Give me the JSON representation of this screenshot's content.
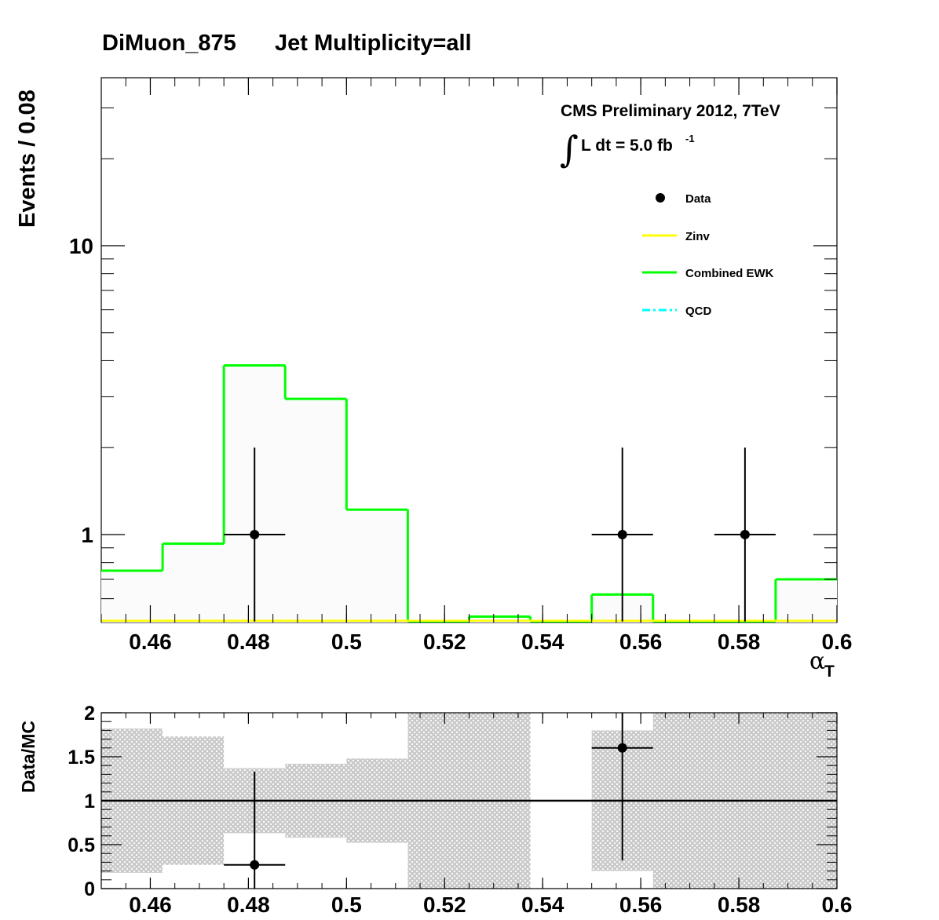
{
  "title": {
    "dataset": "DiMuon_875",
    "selection": "Jet Multiplicity=all"
  },
  "cms_label": {
    "line1": "CMS Preliminary 2012, 7TeV",
    "integral": "∫",
    "lumi_text": "L dt = 5.0 fb",
    "lumi_sup": "-1"
  },
  "colors": {
    "data": "#000000",
    "zinv": "#ffff00",
    "ewk": "#00ff00",
    "qcd": "#00ffff",
    "band": "#c8c8c8",
    "fill": "#fbfbfb"
  },
  "chart_data": [
    {
      "type": "line",
      "panel": "main",
      "title": "DiMuon_875    Jet Multiplicity=all",
      "xlabel": "α_T",
      "ylabel": "Events / 0.08",
      "yscale": "log",
      "xlim": [
        0.45,
        0.6
      ],
      "ylim": [
        0.5,
        36
      ],
      "x_ticks": [
        0.46,
        0.48,
        0.5,
        0.52,
        0.54,
        0.56,
        0.58,
        0.6
      ],
      "x_tick_labels": [
        "0.46",
        "0.48",
        "0.5",
        "0.52",
        "0.54",
        "0.56",
        "0.58",
        "0.6"
      ],
      "y_ticks": [
        1,
        10
      ],
      "y_tick_labels": [
        "1",
        "10"
      ],
      "bin_edges": [
        0.45,
        0.4625,
        0.475,
        0.4875,
        0.5,
        0.5125,
        0.525,
        0.5375,
        0.55,
        0.5625,
        0.575,
        0.5875,
        0.6
      ],
      "series": [
        {
          "name": "Combined EWK",
          "style": "histogram",
          "values": [
            0.75,
            0.93,
            3.85,
            2.95,
            1.22,
            0.5,
            0.52,
            0.5,
            0.62,
            0.5,
            0.5,
            0.7
          ]
        },
        {
          "name": "Zinv",
          "style": "histogram",
          "values": [
            0.5,
            0.5,
            0.5,
            0.5,
            0.5,
            0.5,
            0.5,
            0.5,
            0.5,
            0.5,
            0.5,
            0.5
          ]
        },
        {
          "name": "QCD",
          "style": "histogram",
          "values": []
        },
        {
          "name": "Data",
          "style": "points",
          "points": [
            {
              "x": 0.48125,
              "y": 1,
              "x_lo": 0.475,
              "x_hi": 0.4875,
              "y_lo": 0.5,
              "y_hi": 2
            },
            {
              "x": 0.55625,
              "y": 1,
              "x_lo": 0.55,
              "x_hi": 0.5625,
              "y_lo": 0.5,
              "y_hi": 2
            },
            {
              "x": 0.58125,
              "y": 1,
              "x_lo": 0.575,
              "x_hi": 0.5875,
              "y_lo": 0.5,
              "y_hi": 2
            }
          ]
        }
      ],
      "legend": {
        "position": "top-right",
        "entries": [
          "Data",
          "Zinv",
          "Combined EWK",
          "QCD"
        ]
      },
      "grid": false
    },
    {
      "type": "scatter",
      "panel": "ratio",
      "ylabel": "Data/MC",
      "xlim": [
        0.45,
        0.6
      ],
      "ylim": [
        0,
        2
      ],
      "x_ticks": [
        0.46,
        0.48,
        0.5,
        0.52,
        0.54,
        0.56,
        0.58,
        0.6
      ],
      "x_tick_labels": [
        "0.46",
        "0.48",
        "0.5",
        "0.52",
        "0.54",
        "0.56",
        "0.58",
        "0.6"
      ],
      "y_ticks": [
        0,
        0.5,
        1,
        1.5,
        2
      ],
      "y_tick_labels": [
        "0",
        "0.5",
        "1",
        "1.5",
        "2"
      ],
      "reference_line": 1,
      "uncertainty_band": [
        {
          "x_lo": 0.45,
          "x_hi": 0.4625,
          "lo": 0.18,
          "hi": 1.82
        },
        {
          "x_lo": 0.4625,
          "x_hi": 0.475,
          "lo": 0.27,
          "hi": 1.73
        },
        {
          "x_lo": 0.475,
          "x_hi": 0.4875,
          "lo": 0.63,
          "hi": 1.37
        },
        {
          "x_lo": 0.4875,
          "x_hi": 0.5,
          "lo": 0.58,
          "hi": 1.42
        },
        {
          "x_lo": 0.5,
          "x_hi": 0.5125,
          "lo": 0.52,
          "hi": 1.48
        },
        {
          "x_lo": 0.5125,
          "x_hi": 0.525,
          "lo": 0.0,
          "hi": 2.0
        },
        {
          "x_lo": 0.525,
          "x_hi": 0.5375,
          "lo": 0.0,
          "hi": 2.0
        },
        {
          "x_lo": 0.55,
          "x_hi": 0.5625,
          "lo": 0.2,
          "hi": 1.8
        },
        {
          "x_lo": 0.5625,
          "x_hi": 0.575,
          "lo": 0.0,
          "hi": 2.0
        },
        {
          "x_lo": 0.575,
          "x_hi": 0.5875,
          "lo": 0.0,
          "hi": 2.0
        },
        {
          "x_lo": 0.5875,
          "x_hi": 0.6,
          "lo": 0.0,
          "hi": 2.0
        }
      ],
      "series": [
        {
          "name": "Data",
          "points": [
            {
              "x": 0.48125,
              "y": 0.27,
              "x_lo": 0.475,
              "x_hi": 0.4875,
              "y_lo": 0.0,
              "y_hi": 1.33
            },
            {
              "x": 0.55625,
              "y": 1.6,
              "x_lo": 0.55,
              "x_hi": 0.5625,
              "y_lo": 0.32,
              "y_hi": 2.0
            }
          ]
        }
      ]
    }
  ]
}
